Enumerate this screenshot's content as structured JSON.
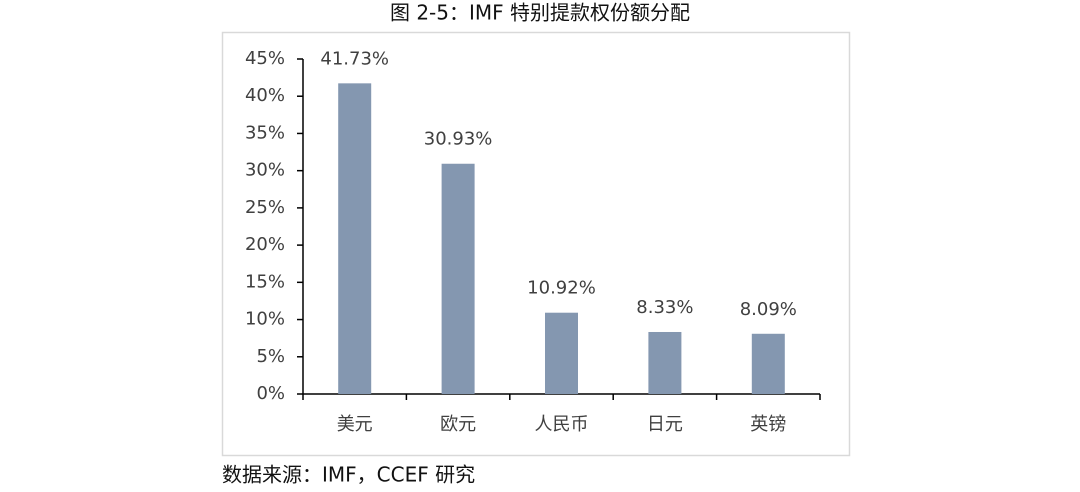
{
  "chart_data": {
    "type": "bar",
    "title": "图 2-5：IMF 特别提款权份额分配",
    "source": "数据来源：IMF，CCEF 研究",
    "categories": [
      "美元",
      "欧元",
      "人民币",
      "日元",
      "英镑"
    ],
    "values": [
      41.73,
      30.93,
      10.92,
      8.33,
      8.09
    ],
    "value_labels": [
      "41.73%",
      "30.93%",
      "10.92%",
      "8.33%",
      "8.09%"
    ],
    "color": "#8497b0",
    "ylim": [
      0,
      45
    ],
    "yticks": [
      {
        "value": 0,
        "label": "0%"
      },
      {
        "value": 5,
        "label": "5%"
      },
      {
        "value": 10,
        "label": "10%"
      },
      {
        "value": 15,
        "label": "15%"
      },
      {
        "value": 20,
        "label": "20%"
      },
      {
        "value": 25,
        "label": "25%"
      },
      {
        "value": 30,
        "label": "30%"
      },
      {
        "value": 35,
        "label": "35%"
      },
      {
        "value": 40,
        "label": "40%"
      },
      {
        "value": 45,
        "label": "45%"
      }
    ],
    "grid": false
  }
}
